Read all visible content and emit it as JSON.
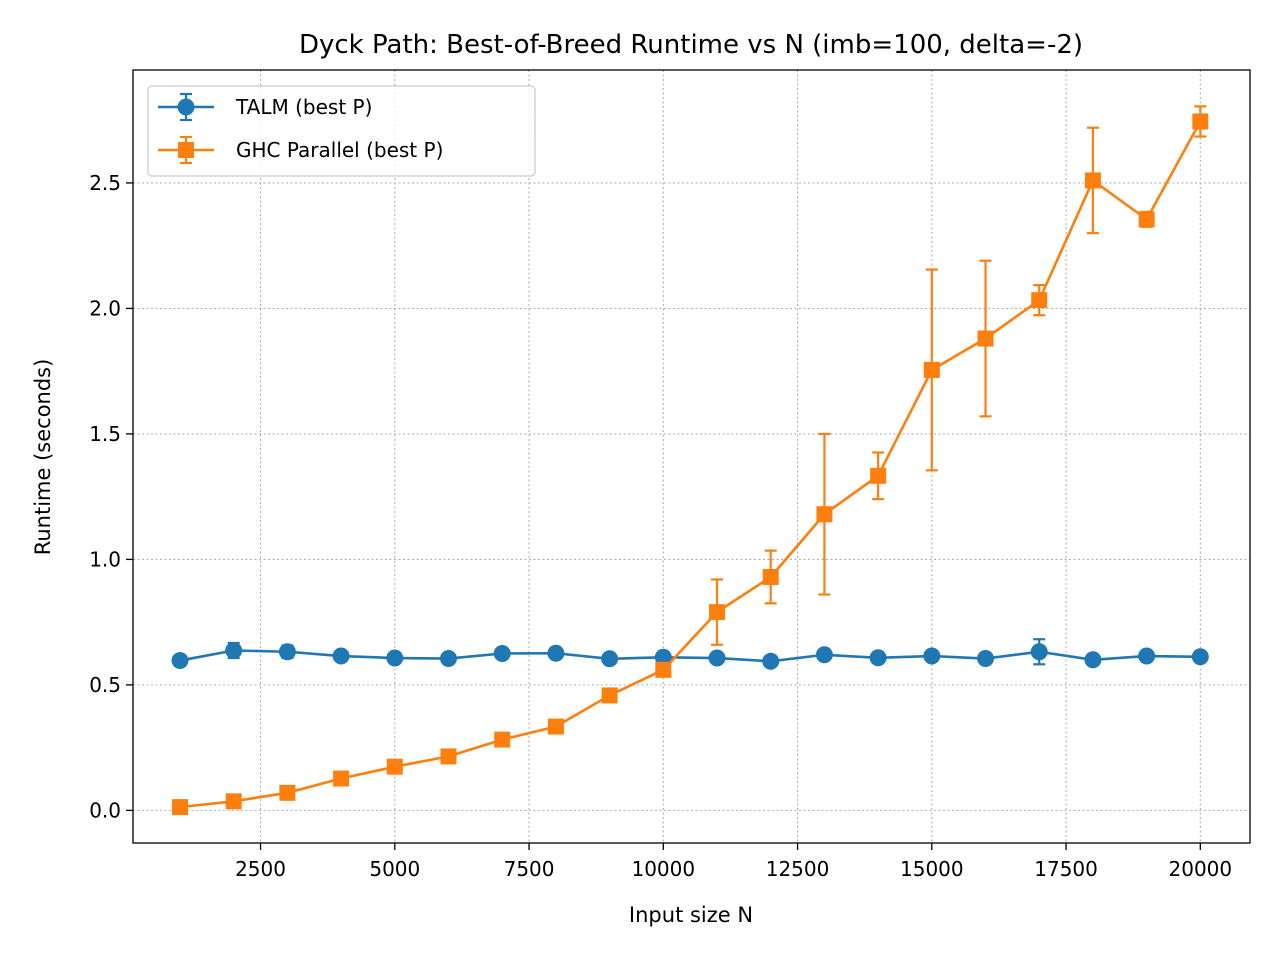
{
  "chart_data": {
    "type": "line",
    "title": "Dyck Path: Best-of-Breed Runtime vs N  (imb=100, delta=-2)",
    "xlabel": "Input size N",
    "ylabel": "Runtime (seconds)",
    "xlim": [
      125,
      20925
    ],
    "ylim": [
      -0.13,
      2.95
    ],
    "x_ticks": [
      2500,
      5000,
      7500,
      10000,
      12500,
      15000,
      17500,
      20000
    ],
    "y_ticks": [
      0.0,
      0.5,
      1.0,
      1.5,
      2.0,
      2.5
    ],
    "grid": true,
    "legend_position": "upper-left",
    "x": [
      1000,
      2000,
      3000,
      4000,
      5000,
      6000,
      7000,
      8000,
      9000,
      10000,
      11000,
      12000,
      13000,
      14000,
      15000,
      16000,
      17000,
      18000,
      19000,
      20000
    ],
    "series": [
      {
        "name": "TALM (best P)",
        "color": "#1f77b4",
        "marker": "circle",
        "values": [
          0.597,
          0.637,
          0.632,
          0.615,
          0.607,
          0.605,
          0.625,
          0.626,
          0.604,
          0.61,
          0.607,
          0.594,
          0.62,
          0.608,
          0.615,
          0.605,
          0.632,
          0.6,
          0.615,
          0.612
        ],
        "errors": [
          0.01,
          0.03,
          0.025,
          0.012,
          0.01,
          0.01,
          0.012,
          0.01,
          0.01,
          0.01,
          0.01,
          0.01,
          0.012,
          0.01,
          0.01,
          0.01,
          0.05,
          0.012,
          0.01,
          0.01
        ]
      },
      {
        "name": "GHC Parallel (best P)",
        "color": "#ff7f0e",
        "marker": "square",
        "values": [
          0.013,
          0.036,
          0.07,
          0.127,
          0.174,
          0.215,
          0.282,
          0.334,
          0.458,
          0.56,
          0.79,
          0.93,
          1.18,
          1.333,
          1.755,
          1.88,
          2.033,
          2.51,
          2.355,
          2.745
        ],
        "errors": [
          0.005,
          0.008,
          0.01,
          0.012,
          0.01,
          0.012,
          0.012,
          0.015,
          0.015,
          0.02,
          0.13,
          0.105,
          0.32,
          0.093,
          0.4,
          0.31,
          0.06,
          0.21,
          0.03,
          0.06
        ]
      }
    ]
  }
}
